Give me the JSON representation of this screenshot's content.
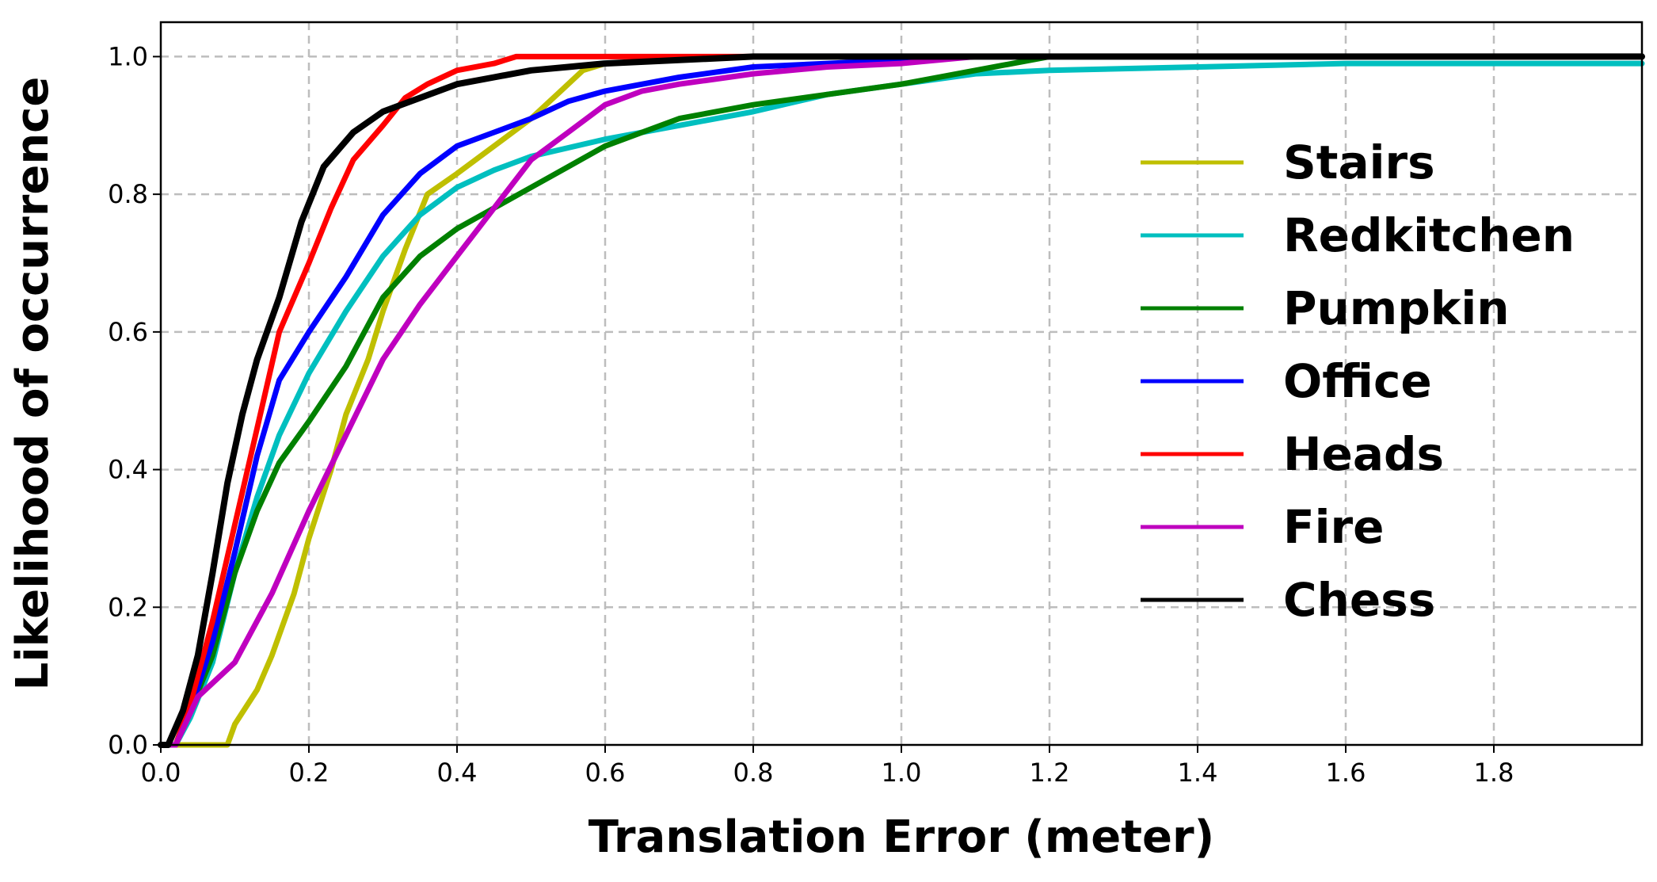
{
  "chart_data": {
    "type": "line",
    "title": "",
    "xlabel": "Translation Error (meter)",
    "ylabel": "Likelihood of occurrence",
    "xlim": [
      0,
      2.0
    ],
    "ylim": [
      0,
      1.05
    ],
    "x_ticks": [
      0.0,
      0.2,
      0.4,
      0.6,
      0.8,
      1.0,
      1.2,
      1.4,
      1.6,
      1.8
    ],
    "x_tick_labels": [
      "0.0",
      "0.2",
      "0.4",
      "0.6",
      "0.8",
      "1.0",
      "1.2",
      "1.4",
      "1.6",
      "1.8"
    ],
    "y_ticks": [
      0.0,
      0.2,
      0.4,
      0.6,
      0.8,
      1.0
    ],
    "y_tick_labels": [
      "0.0",
      "0.2",
      "0.4",
      "0.6",
      "0.8",
      "1.0"
    ],
    "grid": true,
    "legend_position": "right",
    "series": [
      {
        "name": "Stairs",
        "color": "#bfbf00",
        "points": [
          [
            0.0,
            0.0
          ],
          [
            0.09,
            0.0
          ],
          [
            0.1,
            0.03
          ],
          [
            0.13,
            0.08
          ],
          [
            0.15,
            0.13
          ],
          [
            0.18,
            0.22
          ],
          [
            0.2,
            0.3
          ],
          [
            0.23,
            0.4
          ],
          [
            0.25,
            0.48
          ],
          [
            0.28,
            0.56
          ],
          [
            0.3,
            0.63
          ],
          [
            0.33,
            0.72
          ],
          [
            0.36,
            0.8
          ],
          [
            0.4,
            0.83
          ],
          [
            0.45,
            0.87
          ],
          [
            0.5,
            0.91
          ],
          [
            0.54,
            0.95
          ],
          [
            0.57,
            0.98
          ],
          [
            0.6,
            0.99
          ],
          [
            0.7,
            0.995
          ],
          [
            0.8,
            1.0
          ],
          [
            2.0,
            1.0
          ]
        ]
      },
      {
        "name": "Redkitchen",
        "color": "#00bfbf",
        "points": [
          [
            0.0,
            0.0
          ],
          [
            0.02,
            0.0
          ],
          [
            0.04,
            0.04
          ],
          [
            0.07,
            0.12
          ],
          [
            0.1,
            0.25
          ],
          [
            0.13,
            0.36
          ],
          [
            0.16,
            0.45
          ],
          [
            0.2,
            0.54
          ],
          [
            0.25,
            0.63
          ],
          [
            0.3,
            0.71
          ],
          [
            0.35,
            0.77
          ],
          [
            0.4,
            0.81
          ],
          [
            0.45,
            0.835
          ],
          [
            0.5,
            0.855
          ],
          [
            0.6,
            0.88
          ],
          [
            0.7,
            0.9
          ],
          [
            0.8,
            0.92
          ],
          [
            0.9,
            0.945
          ],
          [
            1.0,
            0.96
          ],
          [
            1.1,
            0.975
          ],
          [
            1.2,
            0.98
          ],
          [
            1.4,
            0.985
          ],
          [
            1.6,
            0.99
          ],
          [
            2.0,
            0.99
          ]
        ]
      },
      {
        "name": "Pumpkin",
        "color": "#008000",
        "points": [
          [
            0.0,
            0.0
          ],
          [
            0.02,
            0.0
          ],
          [
            0.04,
            0.05
          ],
          [
            0.07,
            0.13
          ],
          [
            0.1,
            0.25
          ],
          [
            0.13,
            0.34
          ],
          [
            0.16,
            0.41
          ],
          [
            0.2,
            0.47
          ],
          [
            0.25,
            0.55
          ],
          [
            0.3,
            0.65
          ],
          [
            0.35,
            0.71
          ],
          [
            0.4,
            0.75
          ],
          [
            0.45,
            0.78
          ],
          [
            0.5,
            0.81
          ],
          [
            0.55,
            0.84
          ],
          [
            0.6,
            0.87
          ],
          [
            0.7,
            0.91
          ],
          [
            0.8,
            0.93
          ],
          [
            0.9,
            0.945
          ],
          [
            1.0,
            0.96
          ],
          [
            1.1,
            0.98
          ],
          [
            1.2,
            1.0
          ],
          [
            2.0,
            1.0
          ]
        ]
      },
      {
        "name": "Office",
        "color": "#0000ff",
        "points": [
          [
            0.0,
            0.0
          ],
          [
            0.02,
            0.0
          ],
          [
            0.04,
            0.05
          ],
          [
            0.07,
            0.15
          ],
          [
            0.1,
            0.28
          ],
          [
            0.13,
            0.42
          ],
          [
            0.16,
            0.53
          ],
          [
            0.2,
            0.6
          ],
          [
            0.25,
            0.68
          ],
          [
            0.3,
            0.77
          ],
          [
            0.35,
            0.83
          ],
          [
            0.4,
            0.87
          ],
          [
            0.45,
            0.89
          ],
          [
            0.5,
            0.91
          ],
          [
            0.55,
            0.935
          ],
          [
            0.6,
            0.95
          ],
          [
            0.7,
            0.97
          ],
          [
            0.8,
            0.985
          ],
          [
            0.9,
            0.99
          ],
          [
            1.0,
            0.995
          ],
          [
            1.1,
            1.0
          ],
          [
            2.0,
            1.0
          ]
        ]
      },
      {
        "name": "Heads",
        "color": "#ff0000",
        "points": [
          [
            0.0,
            0.0
          ],
          [
            0.02,
            0.0
          ],
          [
            0.04,
            0.06
          ],
          [
            0.07,
            0.18
          ],
          [
            0.1,
            0.32
          ],
          [
            0.13,
            0.46
          ],
          [
            0.16,
            0.6
          ],
          [
            0.2,
            0.7
          ],
          [
            0.23,
            0.78
          ],
          [
            0.26,
            0.85
          ],
          [
            0.3,
            0.9
          ],
          [
            0.33,
            0.94
          ],
          [
            0.36,
            0.96
          ],
          [
            0.4,
            0.98
          ],
          [
            0.45,
            0.99
          ],
          [
            0.48,
            1.0
          ],
          [
            2.0,
            1.0
          ]
        ]
      },
      {
        "name": "Fire",
        "color": "#bf00bf",
        "points": [
          [
            0.0,
            0.0
          ],
          [
            0.02,
            0.0
          ],
          [
            0.05,
            0.07
          ],
          [
            0.1,
            0.12
          ],
          [
            0.15,
            0.22
          ],
          [
            0.2,
            0.34
          ],
          [
            0.25,
            0.45
          ],
          [
            0.3,
            0.56
          ],
          [
            0.35,
            0.64
          ],
          [
            0.4,
            0.71
          ],
          [
            0.45,
            0.78
          ],
          [
            0.5,
            0.85
          ],
          [
            0.55,
            0.89
          ],
          [
            0.6,
            0.93
          ],
          [
            0.65,
            0.95
          ],
          [
            0.7,
            0.96
          ],
          [
            0.8,
            0.975
          ],
          [
            0.9,
            0.985
          ],
          [
            1.0,
            0.99
          ],
          [
            1.1,
            1.0
          ],
          [
            2.0,
            1.0
          ]
        ]
      },
      {
        "name": "Chess",
        "color": "#000000",
        "points": [
          [
            0.0,
            0.0
          ],
          [
            0.01,
            0.0
          ],
          [
            0.03,
            0.05
          ],
          [
            0.05,
            0.13
          ],
          [
            0.07,
            0.25
          ],
          [
            0.09,
            0.38
          ],
          [
            0.11,
            0.48
          ],
          [
            0.13,
            0.56
          ],
          [
            0.16,
            0.65
          ],
          [
            0.19,
            0.76
          ],
          [
            0.22,
            0.84
          ],
          [
            0.26,
            0.89
          ],
          [
            0.3,
            0.92
          ],
          [
            0.35,
            0.94
          ],
          [
            0.4,
            0.96
          ],
          [
            0.45,
            0.97
          ],
          [
            0.5,
            0.98
          ],
          [
            0.55,
            0.985
          ],
          [
            0.6,
            0.99
          ],
          [
            0.7,
            0.995
          ],
          [
            0.8,
            1.0
          ],
          [
            2.0,
            1.0
          ]
        ]
      }
    ]
  }
}
